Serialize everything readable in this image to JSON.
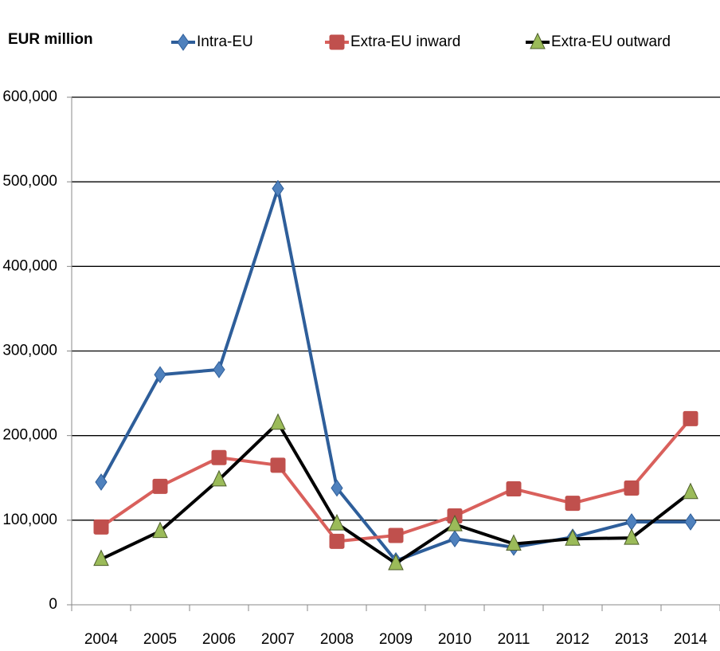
{
  "chart_data": {
    "type": "line",
    "title": "EUR million",
    "categories": [
      "2004",
      "2005",
      "2006",
      "2007",
      "2008",
      "2009",
      "2010",
      "2011",
      "2012",
      "2013",
      "2014"
    ],
    "series": [
      {
        "name": "Intra-EU",
        "color": "#2e5e9a",
        "marker_color": "#4f81bd",
        "marker": "diamond",
        "values": [
          145000,
          272000,
          278000,
          492000,
          138000,
          52000,
          78000,
          68000,
          80000,
          98000,
          98000
        ]
      },
      {
        "name": "Extra-EU inward",
        "color": "#d9605c",
        "marker_color": "#c0504d",
        "marker": "square",
        "values": [
          92000,
          140000,
          174000,
          165000,
          75000,
          82000,
          105000,
          137000,
          120000,
          138000,
          220000
        ]
      },
      {
        "name": "Extra-EU outward",
        "color": "#000000",
        "marker_color": "#9bbb59",
        "marker": "triangle",
        "values": [
          54000,
          87000,
          148000,
          215000,
          96000,
          49000,
          95000,
          72000,
          78000,
          79000,
          133000
        ]
      }
    ],
    "ylim": [
      0,
      600000
    ],
    "yticks": [
      0,
      {
        "value": 100000,
        "label": "100,000"
      },
      {
        "value": 200000,
        "label": "200,000"
      },
      {
        "value": 300000,
        "label": "300,000"
      },
      {
        "value": 400000,
        "label": "400,000"
      },
      {
        "value": 500000,
        "label": "500,000"
      },
      {
        "value": 600000,
        "label": "600,000"
      }
    ],
    "grid": true
  }
}
